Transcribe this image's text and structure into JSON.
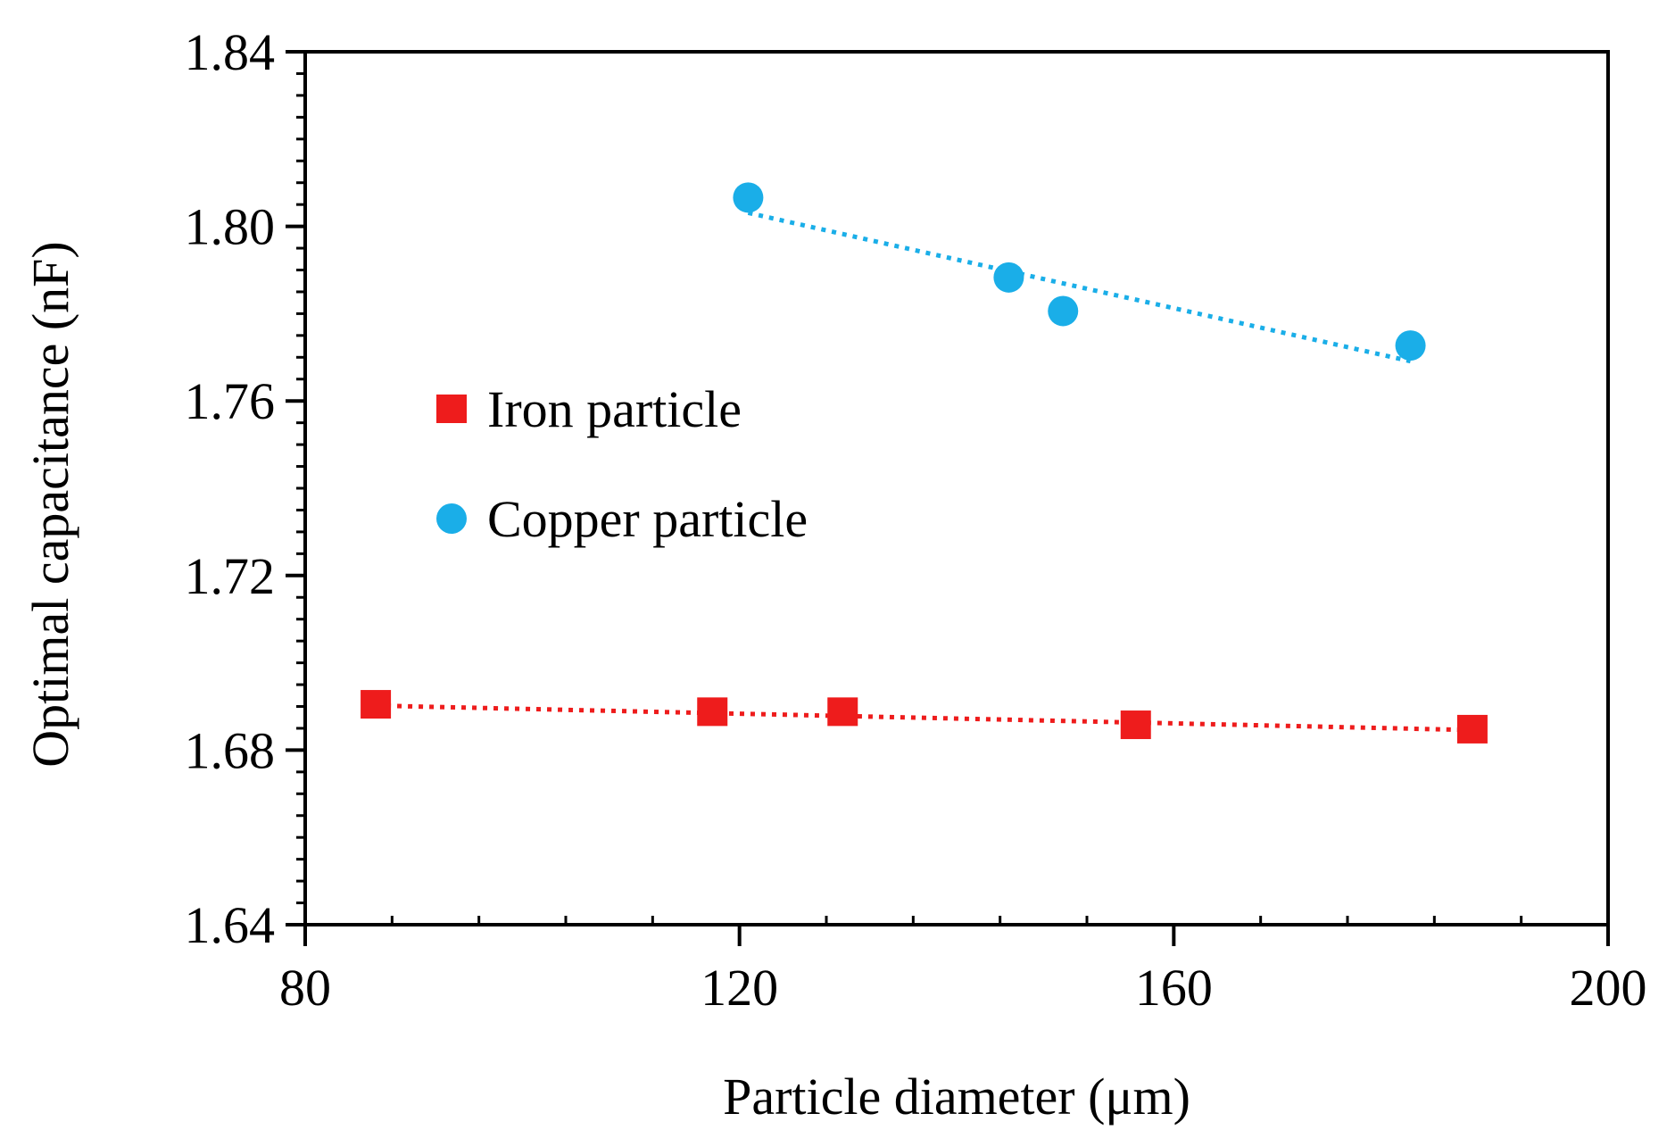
{
  "chart_data": {
    "type": "scatter",
    "xlabel": "Particle diameter (μm)",
    "ylabel": "Optimal capacitance (nF)",
    "xlim": [
      80,
      200
    ],
    "ylim": [
      1.64,
      1.84
    ],
    "x_ticks": [
      80,
      120,
      160,
      200
    ],
    "x_tick_labels": [
      "80",
      "120",
      "160",
      "200"
    ],
    "x_minor_step": 8,
    "y_ticks": [
      1.64,
      1.68,
      1.72,
      1.76,
      1.8,
      1.84
    ],
    "y_tick_labels": [
      "1.64",
      "1.68",
      "1.72",
      "1.76",
      "1.80",
      "1.84"
    ],
    "y_minor_step": 0.005,
    "grid": false,
    "legend_position": "center-left",
    "series": [
      {
        "name": "Iron particle",
        "marker": "square",
        "color": "#ee1c1c",
        "x": [
          86.5,
          117.5,
          129.5,
          156.5,
          187.5
        ],
        "y": [
          1.6905,
          1.6888,
          1.6888,
          1.6858,
          1.6848
        ],
        "trendline": {
          "style": "dotted",
          "x": [
            86.5,
            187.5
          ],
          "y": [
            1.6902,
            1.6846
          ]
        }
      },
      {
        "name": "Copper particle",
        "marker": "circle",
        "color": "#1aaee8",
        "x": [
          120.8,
          144.8,
          149.8,
          181.8
        ],
        "y": [
          1.8066,
          1.7883,
          1.7806,
          1.7727
        ],
        "trendline": {
          "style": "dotted",
          "x": [
            120.8,
            181.8
          ],
          "y": [
            1.8031,
            1.7691
          ]
        }
      }
    ]
  }
}
